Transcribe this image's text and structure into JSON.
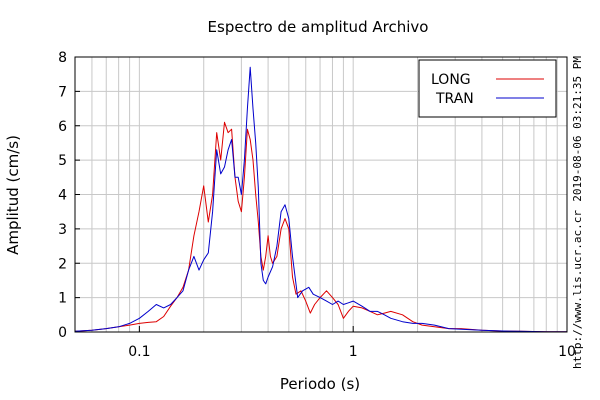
{
  "chart_data": {
    "type": "line",
    "title": "Espectro de amplitud Archivo",
    "xlabel": "Periodo (s)",
    "ylabel": "Amplitud (cm/s)",
    "xscale": "log",
    "xlim": [
      0.05,
      10
    ],
    "ylim": [
      0,
      8
    ],
    "xticks": [
      {
        "value": 0.1,
        "label": "0.1"
      },
      {
        "value": 1,
        "label": "1"
      },
      {
        "value": 10,
        "label": "10"
      }
    ],
    "yticks": [
      0,
      1,
      2,
      3,
      4,
      5,
      6,
      7,
      8
    ],
    "grid": true,
    "legend_position": "top-right",
    "series": [
      {
        "name": "LONG",
        "color": "#dd0000",
        "points": [
          [
            0.05,
            0.02
          ],
          [
            0.06,
            0.05
          ],
          [
            0.07,
            0.1
          ],
          [
            0.08,
            0.15
          ],
          [
            0.09,
            0.2
          ],
          [
            0.1,
            0.25
          ],
          [
            0.11,
            0.28
          ],
          [
            0.12,
            0.3
          ],
          [
            0.13,
            0.45
          ],
          [
            0.14,
            0.75
          ],
          [
            0.15,
            1.0
          ],
          [
            0.16,
            1.3
          ],
          [
            0.17,
            1.8
          ],
          [
            0.18,
            2.8
          ],
          [
            0.19,
            3.5
          ],
          [
            0.2,
            4.25
          ],
          [
            0.21,
            3.2
          ],
          [
            0.22,
            4.0
          ],
          [
            0.23,
            5.8
          ],
          [
            0.24,
            5.0
          ],
          [
            0.25,
            6.1
          ],
          [
            0.26,
            5.8
          ],
          [
            0.27,
            5.9
          ],
          [
            0.28,
            4.5
          ],
          [
            0.29,
            3.8
          ],
          [
            0.3,
            3.5
          ],
          [
            0.31,
            4.5
          ],
          [
            0.32,
            5.9
          ],
          [
            0.33,
            5.6
          ],
          [
            0.34,
            5.0
          ],
          [
            0.35,
            4.0
          ],
          [
            0.36,
            3.2
          ],
          [
            0.37,
            2.2
          ],
          [
            0.38,
            1.8
          ],
          [
            0.39,
            2.2
          ],
          [
            0.4,
            2.8
          ],
          [
            0.41,
            2.2
          ],
          [
            0.42,
            2.0
          ],
          [
            0.44,
            2.2
          ],
          [
            0.46,
            3.0
          ],
          [
            0.48,
            3.3
          ],
          [
            0.5,
            3.0
          ],
          [
            0.52,
            1.6
          ],
          [
            0.54,
            1.1
          ],
          [
            0.57,
            1.2
          ],
          [
            0.6,
            0.9
          ],
          [
            0.63,
            0.55
          ],
          [
            0.66,
            0.8
          ],
          [
            0.7,
            1.0
          ],
          [
            0.75,
            1.2
          ],
          [
            0.8,
            1.0
          ],
          [
            0.85,
            0.8
          ],
          [
            0.9,
            0.4
          ],
          [
            0.95,
            0.6
          ],
          [
            1.0,
            0.75
          ],
          [
            1.1,
            0.7
          ],
          [
            1.2,
            0.6
          ],
          [
            1.3,
            0.5
          ],
          [
            1.4,
            0.55
          ],
          [
            1.5,
            0.6
          ],
          [
            1.7,
            0.5
          ],
          [
            1.9,
            0.3
          ],
          [
            2.1,
            0.2
          ],
          [
            2.4,
            0.15
          ],
          [
            2.8,
            0.1
          ],
          [
            3.2,
            0.1
          ],
          [
            4.0,
            0.05
          ],
          [
            5.0,
            0.03
          ],
          [
            6.0,
            0.02
          ],
          [
            8.0,
            0.01
          ],
          [
            10.0,
            0.01
          ]
        ]
      },
      {
        "name": "TRAN",
        "color": "#0000cc",
        "points": [
          [
            0.05,
            0.02
          ],
          [
            0.06,
            0.05
          ],
          [
            0.07,
            0.1
          ],
          [
            0.08,
            0.15
          ],
          [
            0.09,
            0.25
          ],
          [
            0.1,
            0.4
          ],
          [
            0.11,
            0.6
          ],
          [
            0.12,
            0.8
          ],
          [
            0.13,
            0.7
          ],
          [
            0.14,
            0.8
          ],
          [
            0.15,
            1.0
          ],
          [
            0.16,
            1.2
          ],
          [
            0.17,
            1.8
          ],
          [
            0.18,
            2.2
          ],
          [
            0.19,
            1.8
          ],
          [
            0.2,
            2.1
          ],
          [
            0.21,
            2.3
          ],
          [
            0.22,
            3.5
          ],
          [
            0.23,
            5.3
          ],
          [
            0.24,
            4.6
          ],
          [
            0.25,
            4.8
          ],
          [
            0.26,
            5.3
          ],
          [
            0.27,
            5.6
          ],
          [
            0.28,
            4.5
          ],
          [
            0.29,
            4.5
          ],
          [
            0.3,
            4.0
          ],
          [
            0.31,
            5.0
          ],
          [
            0.32,
            6.5
          ],
          [
            0.33,
            7.7
          ],
          [
            0.34,
            6.5
          ],
          [
            0.35,
            5.5
          ],
          [
            0.36,
            4.2
          ],
          [
            0.37,
            2.0
          ],
          [
            0.38,
            1.5
          ],
          [
            0.39,
            1.4
          ],
          [
            0.4,
            1.6
          ],
          [
            0.42,
            1.9
          ],
          [
            0.44,
            2.5
          ],
          [
            0.46,
            3.5
          ],
          [
            0.48,
            3.7
          ],
          [
            0.5,
            3.3
          ],
          [
            0.52,
            2.2
          ],
          [
            0.55,
            1.0
          ],
          [
            0.58,
            1.2
          ],
          [
            0.62,
            1.3
          ],
          [
            0.65,
            1.1
          ],
          [
            0.7,
            1.0
          ],
          [
            0.75,
            0.9
          ],
          [
            0.8,
            0.8
          ],
          [
            0.85,
            0.9
          ],
          [
            0.9,
            0.8
          ],
          [
            0.95,
            0.85
          ],
          [
            1.0,
            0.9
          ],
          [
            1.1,
            0.75
          ],
          [
            1.2,
            0.6
          ],
          [
            1.3,
            0.6
          ],
          [
            1.4,
            0.5
          ],
          [
            1.5,
            0.4
          ],
          [
            1.7,
            0.3
          ],
          [
            1.9,
            0.25
          ],
          [
            2.1,
            0.25
          ],
          [
            2.4,
            0.2
          ],
          [
            2.8,
            0.1
          ],
          [
            3.2,
            0.08
          ],
          [
            4.0,
            0.05
          ],
          [
            5.0,
            0.03
          ],
          [
            6.0,
            0.02
          ],
          [
            8.0,
            0.01
          ],
          [
            10.0,
            0.01
          ]
        ]
      }
    ]
  },
  "side_annotations": {
    "timestamp": "2019-08-06 03:21:35 PM",
    "url": "http://www.lis.ucr.ac.cr"
  }
}
